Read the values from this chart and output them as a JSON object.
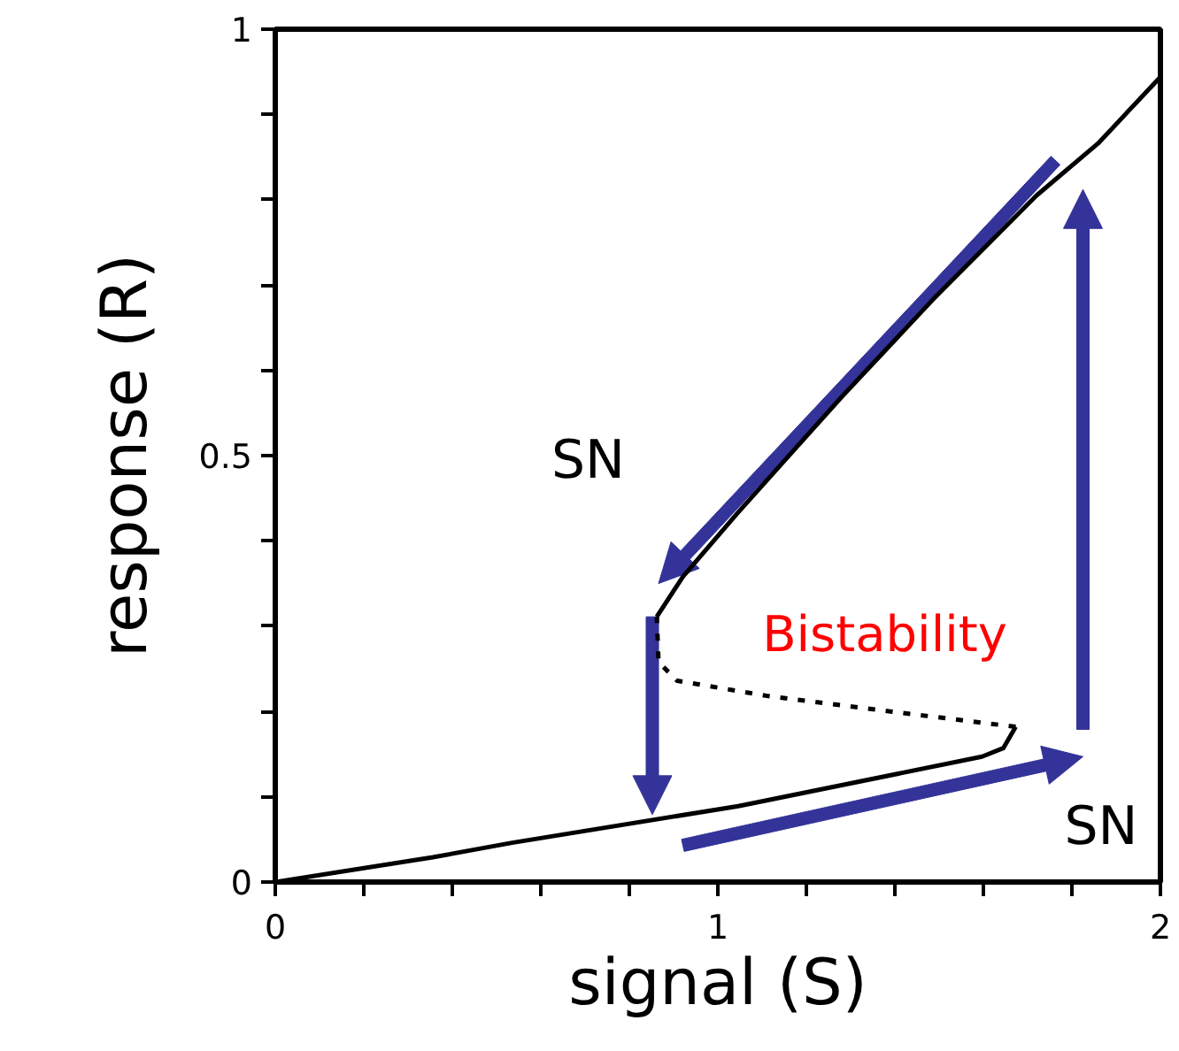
{
  "chart_data": {
    "type": "line",
    "xlabel": "signal (S)",
    "ylabel": "response (R)",
    "xlim": [
      0,
      2
    ],
    "ylim": [
      0,
      1
    ],
    "xticks": [
      0,
      {
        "value": 0.2,
        "label": null
      },
      {
        "value": 0.4,
        "label": null
      },
      {
        "value": 0.6,
        "label": null
      },
      {
        "value": 0.8,
        "label": null
      },
      1,
      {
        "value": 1.2,
        "label": null
      },
      {
        "value": 1.4,
        "label": null
      },
      {
        "value": 1.6,
        "label": null
      },
      {
        "value": 1.8,
        "label": null
      },
      2
    ],
    "yticks": [
      0,
      {
        "value": 0.1,
        "label": null
      },
      {
        "value": 0.2,
        "label": null
      },
      {
        "value": 0.3,
        "label": null
      },
      {
        "value": 0.4,
        "label": null
      },
      0.5,
      {
        "value": 0.6,
        "label": null
      },
      {
        "value": 0.7,
        "label": null
      },
      {
        "value": 0.8,
        "label": null
      },
      {
        "value": 0.9,
        "label": null
      },
      1
    ],
    "marker": "none",
    "series": [
      {
        "color": "#000000",
        "line_style": "solid",
        "x": [
          0,
          0.356,
          0.535,
          1.046,
          1.597,
          1.645,
          1.673
        ],
        "values": [
          0,
          0.029,
          0.046,
          0.089,
          0.147,
          0.157,
          0.182
        ]
      },
      {
        "color": "#000000",
        "line_style": "dotted",
        "x": [
          1.673,
          1.39,
          1.114,
          0.908,
          0.866,
          0.862
        ],
        "values": [
          0.182,
          0.2,
          0.218,
          0.236,
          0.258,
          0.311
        ]
      },
      {
        "color": "#000000",
        "line_style": "solid",
        "x": [
          0.862,
          0.921,
          1.045,
          1.28,
          1.486,
          1.72,
          1.859,
          2.0
        ],
        "values": [
          0.311,
          0.358,
          0.433,
          0.569,
          0.683,
          0.805,
          0.866,
          0.944
        ]
      }
    ],
    "annotations": [
      "SN",
      "SN",
      "Bistability"
    ]
  }
}
